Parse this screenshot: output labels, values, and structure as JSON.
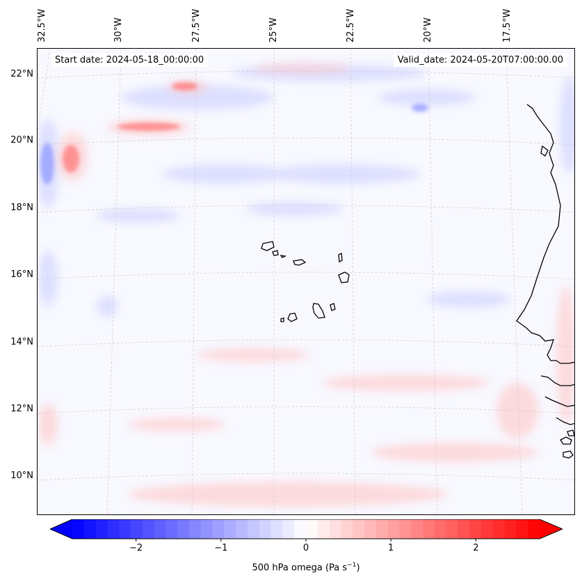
{
  "map": {
    "start_date": "Start date: 2024-05-18_00:00:00",
    "valid_date": "Valid_date: 2024-05-20T07:00:00.00",
    "lon_labels": [
      "32.5°W",
      "30°W",
      "27.5°W",
      "25°W",
      "22.5°W",
      "20°W",
      "17.5°W"
    ],
    "lat_labels": [
      "22°N",
      "20°N",
      "18°N",
      "16°N",
      "14°N",
      "12°N",
      "10°N"
    ]
  },
  "colorbar": {
    "label": "500 hPa omega (Pa s",
    "label_unit_exp": "−1",
    "label_close": ")",
    "ticks": [
      {
        "value": -2,
        "text": "−2"
      },
      {
        "value": -1,
        "text": "−1"
      },
      {
        "value": 0,
        "text": "0"
      },
      {
        "value": 1,
        "text": "1"
      },
      {
        "value": 2,
        "text": "2"
      }
    ],
    "range": [
      -2.75,
      2.75
    ],
    "colors": {
      "neg": "#0000ff",
      "mid": "#ffffff",
      "pos": "#ff0000"
    }
  }
}
